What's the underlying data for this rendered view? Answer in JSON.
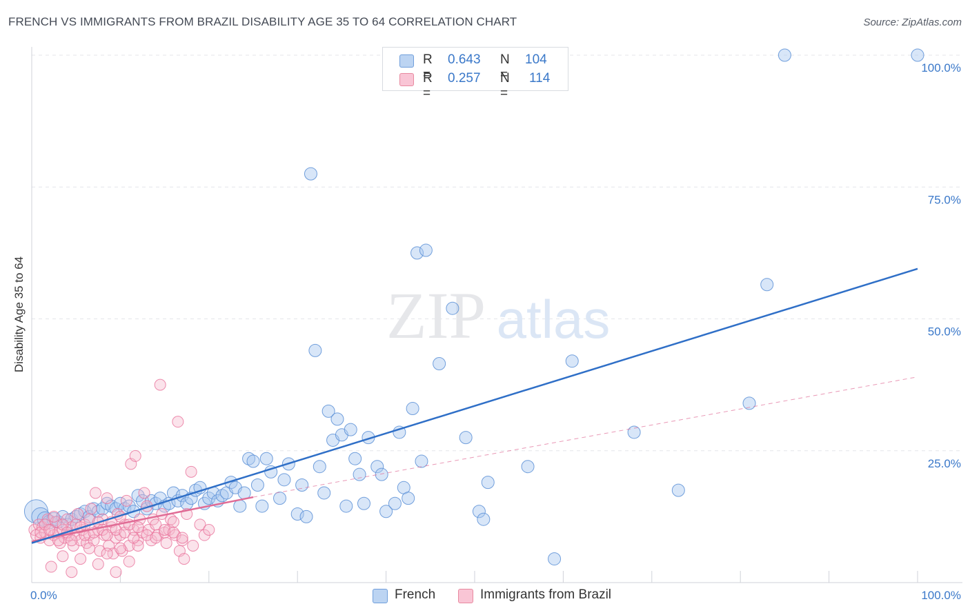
{
  "title": "FRENCH VS IMMIGRANTS FROM BRAZIL DISABILITY AGE 35 TO 64 CORRELATION CHART",
  "source": "Source: ZipAtlas.com",
  "legend": {
    "r_label": "R =",
    "n_label": "N =",
    "rows": [
      {
        "series": "French",
        "r": "0.643",
        "n": "104"
      },
      {
        "series": "Immigrants from Brazil",
        "r": "0.257",
        "n": "114"
      }
    ]
  },
  "colors": {
    "french": "#5b8fd6",
    "french_fill": "#a9c7ef",
    "brazil": "#e8709a",
    "brazil_fill": "#f6b9cc",
    "french_line": "#2f6fc7",
    "brazil_line": "#e06b95",
    "tick_label": "#3a78c9"
  },
  "chart_data": {
    "type": "scatter",
    "title": "FRENCH VS IMMIGRANTS FROM BRAZIL DISABILITY AGE 35 TO 64 CORRELATION CHART",
    "xlabel": "",
    "ylabel": "Disability Age 35 to 64",
    "xlim": [
      0,
      100
    ],
    "ylim": [
      0,
      102
    ],
    "x_tick_labels": [
      "0.0%",
      "100.0%"
    ],
    "y_ticks": [
      25,
      50,
      75,
      100
    ],
    "y_tick_labels": [
      "25.0%",
      "50.0%",
      "75.0%",
      "100.0%"
    ],
    "grid": true,
    "legend_position": "top-center",
    "series": [
      {
        "name": "French",
        "trend": {
          "x": [
            0,
            100
          ],
          "y": [
            7.5,
            59.5
          ]
        },
        "points": [
          [
            0.5,
            13.5
          ],
          [
            1,
            12.5
          ],
          [
            1.5,
            12
          ],
          [
            2,
            11.5
          ],
          [
            2.5,
            12
          ],
          [
            3,
            11.5
          ],
          [
            3.5,
            12.5
          ],
          [
            4,
            11
          ],
          [
            4.5,
            12
          ],
          [
            5,
            12.5
          ],
          [
            5.5,
            13
          ],
          [
            6,
            13.5
          ],
          [
            6.5,
            12.5
          ],
          [
            7,
            14
          ],
          [
            7.5,
            13.5
          ],
          [
            8,
            14
          ],
          [
            8.5,
            15
          ],
          [
            9,
            14.5
          ],
          [
            9.5,
            14
          ],
          [
            10,
            15
          ],
          [
            10.5,
            14
          ],
          [
            11,
            14.5
          ],
          [
            11.5,
            13.5
          ],
          [
            12,
            16.5
          ],
          [
            12.5,
            15.5
          ],
          [
            13,
            14
          ],
          [
            13.5,
            15.5
          ],
          [
            14,
            15
          ],
          [
            14.5,
            16
          ],
          [
            15,
            14.5
          ],
          [
            15.5,
            15
          ],
          [
            16,
            17
          ],
          [
            16.5,
            15.5
          ],
          [
            17,
            16.5
          ],
          [
            17.5,
            15
          ],
          [
            18,
            16
          ],
          [
            18.5,
            17.5
          ],
          [
            19,
            18
          ],
          [
            19.5,
            15
          ],
          [
            20,
            16
          ],
          [
            20.5,
            17
          ],
          [
            21,
            15.5
          ],
          [
            21.5,
            16.5
          ],
          [
            22,
            17
          ],
          [
            22.5,
            19
          ],
          [
            23,
            18
          ],
          [
            23.5,
            14.5
          ],
          [
            24,
            17
          ],
          [
            24.5,
            23.5
          ],
          [
            25,
            23
          ],
          [
            25.5,
            18.5
          ],
          [
            26,
            14.5
          ],
          [
            26.5,
            23.5
          ],
          [
            27,
            21
          ],
          [
            28,
            16
          ],
          [
            28.5,
            19.5
          ],
          [
            29,
            22.5
          ],
          [
            30,
            13
          ],
          [
            30.5,
            18.5
          ],
          [
            31,
            12.5
          ],
          [
            31.5,
            77.5
          ],
          [
            32,
            44
          ],
          [
            32.5,
            22
          ],
          [
            33,
            17
          ],
          [
            33.5,
            32.5
          ],
          [
            34,
            27
          ],
          [
            34.5,
            31
          ],
          [
            35,
            28
          ],
          [
            35.5,
            14.5
          ],
          [
            36,
            29
          ],
          [
            36.5,
            23.5
          ],
          [
            37,
            20.5
          ],
          [
            37.5,
            15
          ],
          [
            38,
            27.5
          ],
          [
            39,
            22
          ],
          [
            39.5,
            20.5
          ],
          [
            40,
            13.5
          ],
          [
            41,
            15
          ],
          [
            41.5,
            28.5
          ],
          [
            42,
            18
          ],
          [
            42.5,
            16
          ],
          [
            43,
            33
          ],
          [
            43.5,
            62.5
          ],
          [
            44,
            23
          ],
          [
            44.5,
            63
          ],
          [
            46,
            41.5
          ],
          [
            47.5,
            52
          ],
          [
            49,
            27.5
          ],
          [
            50.5,
            13.5
          ],
          [
            51,
            12
          ],
          [
            51.5,
            19
          ],
          [
            56,
            22
          ],
          [
            59,
            4.5
          ],
          [
            61,
            42
          ],
          [
            68,
            28.5
          ],
          [
            73,
            17.5
          ],
          [
            81,
            34
          ],
          [
            83,
            56.5
          ],
          [
            85,
            100
          ],
          [
            100,
            100
          ]
        ],
        "sizes": [
          34,
          26,
          22,
          20,
          20,
          18,
          18,
          18,
          18,
          18,
          18,
          18,
          18,
          18,
          18,
          18,
          18,
          18,
          18,
          18,
          18,
          18,
          18,
          18,
          18,
          18,
          18,
          18,
          18,
          18,
          18,
          18,
          18,
          18,
          18,
          18,
          18,
          18,
          18,
          18,
          18,
          18,
          18,
          18,
          18,
          18,
          18,
          18,
          18,
          18,
          18,
          18,
          18,
          18,
          18,
          18,
          18,
          18,
          18,
          18,
          18,
          18,
          18,
          18,
          18,
          18,
          18,
          18,
          18,
          18,
          18,
          18,
          18,
          18,
          18,
          18,
          18,
          18,
          18,
          18,
          18,
          18,
          18,
          18,
          18,
          18,
          18,
          18,
          18,
          18,
          18,
          18,
          18,
          18,
          18,
          18,
          18,
          18,
          18,
          18
        ]
      },
      {
        "name": "Immigrants from Brazil",
        "trend": {
          "x": [
            0,
            25
          ],
          "y": [
            7.8,
            16.2
          ]
        },
        "trend_extension": {
          "x": [
            25,
            100
          ],
          "y": [
            16.2,
            39
          ]
        },
        "points": [
          [
            0.3,
            10
          ],
          [
            0.5,
            9
          ],
          [
            0.8,
            11
          ],
          [
            1,
            8.5
          ],
          [
            1.2,
            10.5
          ],
          [
            1.5,
            9.5
          ],
          [
            1.8,
            12
          ],
          [
            2,
            8
          ],
          [
            2.2,
            10
          ],
          [
            2.5,
            9
          ],
          [
            2.7,
            11.5
          ],
          [
            3,
            9.5
          ],
          [
            3.2,
            7.5
          ],
          [
            3.5,
            10
          ],
          [
            3.7,
            8.5
          ],
          [
            4,
            12
          ],
          [
            4.2,
            9
          ],
          [
            4.5,
            10.5
          ],
          [
            4.7,
            7
          ],
          [
            5,
            9
          ],
          [
            5.2,
            13
          ],
          [
            5.5,
            8
          ],
          [
            5.7,
            10
          ],
          [
            6,
            11
          ],
          [
            6.2,
            7.5
          ],
          [
            6.5,
            9
          ],
          [
            6.7,
            14
          ],
          [
            7,
            8
          ],
          [
            7.2,
            17
          ],
          [
            7.5,
            10
          ],
          [
            7.7,
            6
          ],
          [
            8,
            12
          ],
          [
            8.2,
            9
          ],
          [
            8.5,
            16
          ],
          [
            8.7,
            7
          ],
          [
            9,
            10.5
          ],
          [
            9.2,
            5.5
          ],
          [
            9.5,
            8.5
          ],
          [
            9.7,
            13
          ],
          [
            10,
            9
          ],
          [
            10.2,
            6
          ],
          [
            10.5,
            11
          ],
          [
            10.7,
            15.5
          ],
          [
            11,
            7
          ],
          [
            11.2,
            22.5
          ],
          [
            11.5,
            10
          ],
          [
            11.7,
            24
          ],
          [
            12,
            8
          ],
          [
            12.2,
            12
          ],
          [
            12.5,
            9.5
          ],
          [
            12.7,
            17
          ],
          [
            13,
            14.5
          ],
          [
            13.2,
            10
          ],
          [
            13.5,
            8
          ],
          [
            13.7,
            12
          ],
          [
            14,
            11
          ],
          [
            14.2,
            9
          ],
          [
            14.5,
            37.5
          ],
          [
            14.7,
            13
          ],
          [
            15,
            9.5
          ],
          [
            15.2,
            7.5
          ],
          [
            15.5,
            10
          ],
          [
            15.7,
            12
          ],
          [
            16,
            11.5
          ],
          [
            16.2,
            9
          ],
          [
            16.5,
            30.5
          ],
          [
            16.7,
            6
          ],
          [
            17,
            8
          ],
          [
            17.2,
            4.5
          ],
          [
            17.5,
            13
          ],
          [
            18,
            21
          ],
          [
            18.2,
            7
          ],
          [
            19,
            11
          ],
          [
            19.5,
            9
          ],
          [
            2.2,
            3
          ],
          [
            3.5,
            5
          ],
          [
            4.5,
            2
          ],
          [
            5.5,
            4.5
          ],
          [
            6.5,
            6.5
          ],
          [
            7.5,
            3.5
          ],
          [
            8.5,
            5.5
          ],
          [
            9.5,
            2
          ],
          [
            10,
            6.5
          ],
          [
            11,
            4
          ],
          [
            12,
            7
          ],
          [
            1,
            9.5
          ],
          [
            1.5,
            11
          ],
          [
            2,
            10
          ],
          [
            2.5,
            12.5
          ],
          [
            3,
            8
          ],
          [
            3.5,
            11
          ],
          [
            4,
            9.5
          ],
          [
            4.5,
            8
          ],
          [
            5,
            11
          ],
          [
            5.5,
            10.5
          ],
          [
            6,
            9
          ],
          [
            6.5,
            12
          ],
          [
            7,
            9.5
          ],
          [
            7.5,
            11.5
          ],
          [
            8,
            10
          ],
          [
            8.5,
            9
          ],
          [
            9,
            11.5
          ],
          [
            9.5,
            10
          ],
          [
            10,
            12.5
          ],
          [
            10.5,
            9.5
          ],
          [
            11,
            11
          ],
          [
            11.5,
            8.5
          ],
          [
            12,
            10.5
          ],
          [
            13,
            9
          ],
          [
            14,
            8.5
          ],
          [
            15,
            10
          ],
          [
            16,
            9.5
          ],
          [
            17,
            8.5
          ],
          [
            20,
            10
          ]
        ]
      }
    ]
  }
}
